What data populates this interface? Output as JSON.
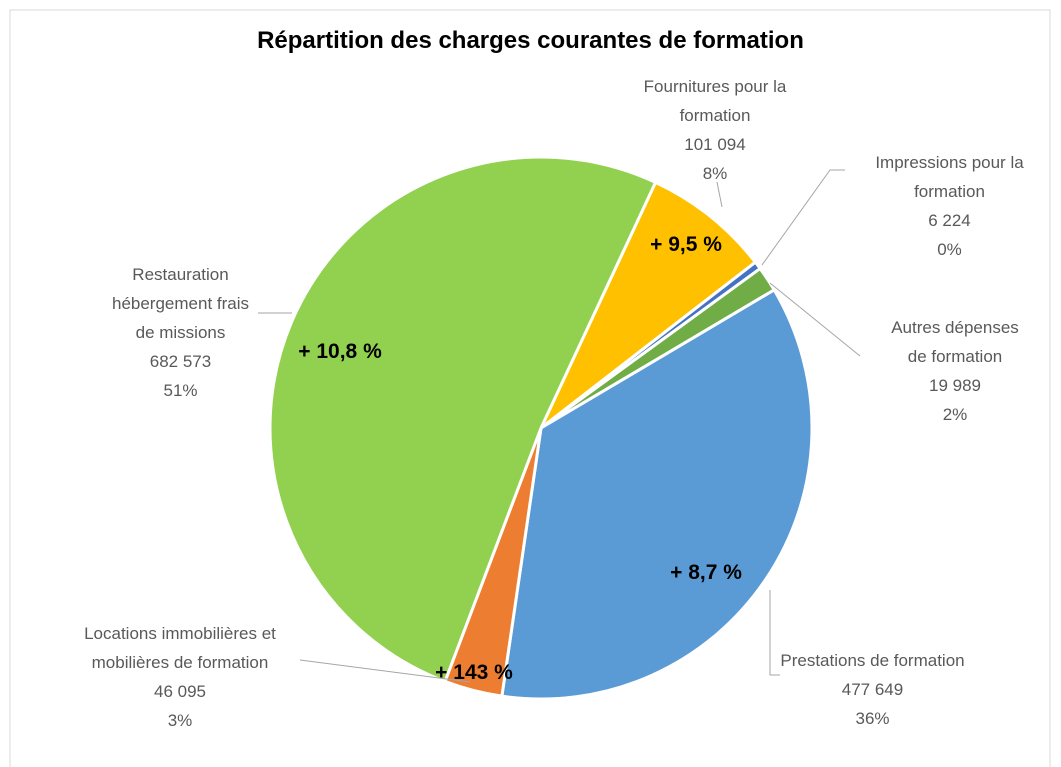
{
  "chart_data": {
    "type": "pie",
    "title": "Répartition des charges courantes de formation",
    "categories": [
      "Fournitures pour la formation",
      "Impressions pour la formation",
      "Autres dépenses de formation",
      "Prestations de formation",
      "Locations immobilières et mobilières de formation",
      "Restauration hébergement frais de missions"
    ],
    "values": [
      101094,
      6224,
      19989,
      477649,
      46095,
      682573
    ],
    "value_labels": [
      "101 094",
      "6 224",
      "19 989",
      "477 649",
      "46 095",
      "682 573"
    ],
    "percent_labels": [
      "8%",
      "0%",
      "2%",
      "36%",
      "3%",
      "51%"
    ],
    "annotations": [
      "+ 9,5 %",
      null,
      null,
      "+ 8,7 %",
      "+ 143 %",
      "+ 10,8 %"
    ],
    "colors": [
      "#ffc000",
      "#4472c4",
      "#70ad47",
      "#5b9bd5",
      "#ed7d31",
      "#92d050"
    ]
  }
}
